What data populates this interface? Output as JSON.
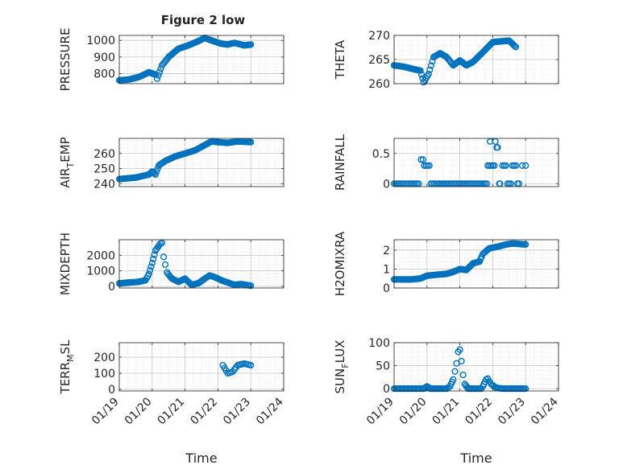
{
  "title": "Figure 2 low",
  "marker_color": "#0072bd",
  "x_tick_labels": [
    "01/19",
    "01/20",
    "01/21",
    "01/22",
    "01/23",
    "01/24"
  ],
  "xlabel": "Time",
  "chart_data": [
    {
      "type": "scatter",
      "ylabel": "PRESSURE",
      "xlim": [
        19,
        24
      ],
      "ylim": [
        740,
        1030
      ],
      "yticks": [
        800,
        900,
        1000
      ],
      "grid": true,
      "anchors": [
        [
          19.0,
          760
        ],
        [
          19.3,
          765
        ],
        [
          19.6,
          780
        ],
        [
          19.9,
          808
        ],
        [
          20.1,
          795
        ],
        [
          20.15,
          770
        ],
        [
          20.3,
          850
        ],
        [
          20.5,
          900
        ],
        [
          20.8,
          950
        ],
        [
          21.1,
          970
        ],
        [
          21.4,
          995
        ],
        [
          21.6,
          1015
        ],
        [
          21.8,
          1000
        ],
        [
          22.1,
          980
        ],
        [
          22.3,
          975
        ],
        [
          22.5,
          985
        ],
        [
          22.8,
          970
        ],
        [
          23.0,
          975
        ]
      ],
      "values": []
    },
    {
      "type": "scatter",
      "ylabel": "THETA",
      "xlim": [
        19,
        24
      ],
      "ylim": [
        260,
        270
      ],
      "yticks": [
        260,
        265,
        270
      ],
      "grid": true,
      "anchors": [
        [
          19.0,
          263.8
        ],
        [
          19.3,
          263.5
        ],
        [
          19.6,
          263.0
        ],
        [
          19.8,
          262.7
        ],
        [
          19.9,
          260.3
        ],
        [
          20.05,
          262.0
        ],
        [
          20.2,
          265.5
        ],
        [
          20.4,
          266.3
        ],
        [
          20.6,
          265.5
        ],
        [
          20.8,
          263.8
        ],
        [
          21.0,
          264.8
        ],
        [
          21.2,
          263.8
        ],
        [
          21.4,
          264.5
        ],
        [
          21.7,
          266.5
        ],
        [
          22.0,
          268.6
        ],
        [
          22.3,
          268.8
        ],
        [
          22.5,
          268.9
        ],
        [
          22.7,
          267.6
        ]
      ],
      "values": []
    },
    {
      "type": "scatter",
      "ylabel": "AIR_TEMP",
      "xlim": [
        19,
        24
      ],
      "ylim": [
        238,
        270
      ],
      "yticks": [
        240,
        250,
        260
      ],
      "grid": true,
      "anchors": [
        [
          19.0,
          243.0
        ],
        [
          19.5,
          244.0
        ],
        [
          19.9,
          246.0
        ],
        [
          20.0,
          248.0
        ],
        [
          20.1,
          246.0
        ],
        [
          20.2,
          252.0
        ],
        [
          20.4,
          255.0
        ],
        [
          20.7,
          258.0
        ],
        [
          21.0,
          260.0
        ],
        [
          21.3,
          262.0
        ],
        [
          21.6,
          265.5
        ],
        [
          21.8,
          268.0
        ],
        [
          22.0,
          267.5
        ],
        [
          22.3,
          267.0
        ],
        [
          22.6,
          268.0
        ],
        [
          23.0,
          267.5
        ]
      ],
      "values": []
    },
    {
      "type": "scatter",
      "ylabel": "RAINFALL",
      "xlim": [
        19,
        24
      ],
      "ylim": [
        -0.05,
        0.75
      ],
      "yticks": [
        0,
        0.5
      ],
      "grid": true,
      "values": [
        [
          19.0,
          0
        ],
        [
          19.05,
          0
        ],
        [
          19.1,
          0
        ],
        [
          19.15,
          0
        ],
        [
          19.2,
          0
        ],
        [
          19.25,
          0
        ],
        [
          19.3,
          0
        ],
        [
          19.35,
          0
        ],
        [
          19.4,
          0
        ],
        [
          19.45,
          0
        ],
        [
          19.5,
          0
        ],
        [
          19.55,
          0
        ],
        [
          19.6,
          0
        ],
        [
          19.65,
          0
        ],
        [
          19.7,
          0
        ],
        [
          19.75,
          0
        ],
        [
          19.82,
          0.4
        ],
        [
          19.88,
          0.4
        ],
        [
          19.92,
          0.3
        ],
        [
          19.97,
          0.3
        ],
        [
          20.02,
          0.3
        ],
        [
          20.07,
          0.3
        ],
        [
          20.12,
          0
        ],
        [
          20.17,
          0
        ],
        [
          20.22,
          0
        ],
        [
          20.27,
          0
        ],
        [
          20.32,
          0
        ],
        [
          20.37,
          0
        ],
        [
          20.42,
          0
        ],
        [
          20.47,
          0
        ],
        [
          20.52,
          0
        ],
        [
          20.57,
          0
        ],
        [
          20.62,
          0
        ],
        [
          20.67,
          0
        ],
        [
          20.72,
          0
        ],
        [
          20.77,
          0
        ],
        [
          20.82,
          0
        ],
        [
          20.87,
          0
        ],
        [
          20.92,
          0
        ],
        [
          20.97,
          0
        ],
        [
          21.02,
          0
        ],
        [
          21.07,
          0
        ],
        [
          21.12,
          0
        ],
        [
          21.17,
          0
        ],
        [
          21.22,
          0
        ],
        [
          21.27,
          0
        ],
        [
          21.32,
          0
        ],
        [
          21.37,
          0
        ],
        [
          21.42,
          0
        ],
        [
          21.47,
          0
        ],
        [
          21.52,
          0
        ],
        [
          21.57,
          0
        ],
        [
          21.62,
          0
        ],
        [
          21.67,
          0
        ],
        [
          21.72,
          0
        ],
        [
          21.77,
          0
        ],
        [
          21.82,
          0
        ],
        [
          21.85,
          0.3
        ],
        [
          21.9,
          0.3
        ],
        [
          21.92,
          0.7
        ],
        [
          21.95,
          0.3
        ],
        [
          22.0,
          0.3
        ],
        [
          22.05,
          0.3
        ],
        [
          22.08,
          0.7
        ],
        [
          22.12,
          0.6
        ],
        [
          22.15,
          0.6
        ],
        [
          22.2,
          0
        ],
        [
          22.22,
          0
        ],
        [
          22.3,
          0.3
        ],
        [
          22.35,
          0.3
        ],
        [
          22.4,
          0.3
        ],
        [
          22.45,
          0
        ],
        [
          22.5,
          0
        ],
        [
          22.55,
          0
        ],
        [
          22.6,
          0.3
        ],
        [
          22.65,
          0.3
        ],
        [
          22.7,
          0.3
        ],
        [
          22.75,
          0
        ],
        [
          22.8,
          0
        ],
        [
          22.9,
          0.3
        ],
        [
          23.0,
          0.3
        ]
      ]
    },
    {
      "type": "scatter",
      "ylabel": "MIXDEPTH",
      "xlim": [
        19,
        24
      ],
      "ylim": [
        -100,
        3000
      ],
      "yticks": [
        0,
        1000,
        2000
      ],
      "grid": true,
      "anchors": [
        [
          19.0,
          200
        ],
        [
          19.3,
          250
        ],
        [
          19.6,
          300
        ],
        [
          19.8,
          400
        ],
        [
          19.9,
          800
        ],
        [
          20.0,
          1500
        ],
        [
          20.1,
          2300
        ],
        [
          20.25,
          2750
        ],
        [
          20.3,
          2800
        ],
        [
          20.35,
          1900
        ],
        [
          20.4,
          1400
        ],
        [
          20.45,
          900
        ],
        [
          20.6,
          500
        ],
        [
          20.8,
          300
        ],
        [
          21.0,
          500
        ],
        [
          21.2,
          100
        ],
        [
          21.4,
          200
        ],
        [
          21.6,
          500
        ],
        [
          21.75,
          700
        ],
        [
          21.9,
          600
        ],
        [
          22.1,
          400
        ],
        [
          22.3,
          250
        ],
        [
          22.5,
          100
        ],
        [
          22.7,
          150
        ],
        [
          22.85,
          100
        ],
        [
          23.0,
          50
        ]
      ],
      "values": []
    },
    {
      "type": "scatter",
      "ylabel": "H2OMIXRA",
      "xlim": [
        19,
        24
      ],
      "ylim": [
        0,
        2.55
      ],
      "yticks": [
        0,
        1,
        2
      ],
      "grid": true,
      "anchors": [
        [
          19.0,
          0.45
        ],
        [
          19.5,
          0.45
        ],
        [
          19.8,
          0.5
        ],
        [
          20.0,
          0.65
        ],
        [
          20.3,
          0.7
        ],
        [
          20.6,
          0.75
        ],
        [
          20.8,
          0.85
        ],
        [
          21.0,
          1.0
        ],
        [
          21.2,
          0.95
        ],
        [
          21.4,
          1.3
        ],
        [
          21.6,
          1.4
        ],
        [
          21.7,
          1.8
        ],
        [
          21.9,
          2.1
        ],
        [
          22.2,
          2.2
        ],
        [
          22.4,
          2.3
        ],
        [
          22.6,
          2.35
        ],
        [
          23.0,
          2.3
        ]
      ],
      "values": []
    },
    {
      "type": "scatter",
      "ylabel": "TERR_MSL",
      "xlim": [
        19,
        24
      ],
      "ylim": [
        -10,
        290
      ],
      "yticks": [
        0,
        100,
        200
      ],
      "grid": true,
      "values": []
    },
    {
      "type": "scatter",
      "ylabel": "SUN_FLUX",
      "xlim": [
        19,
        24
      ],
      "ylim": [
        -5,
        100
      ],
      "yticks": [
        0,
        50,
        100
      ],
      "grid": true,
      "values": []
    }
  ]
}
